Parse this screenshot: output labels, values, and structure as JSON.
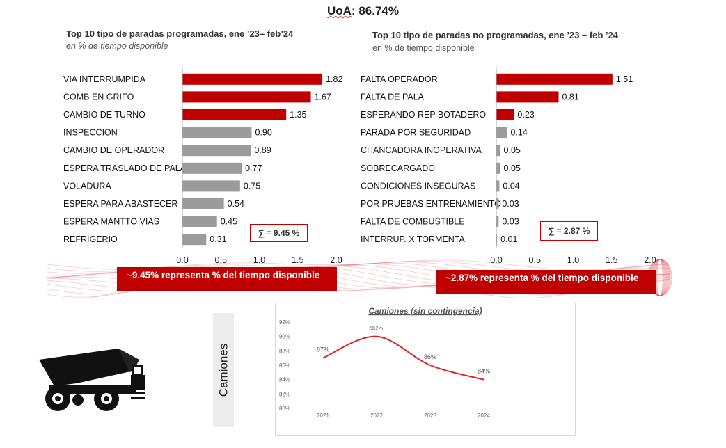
{
  "header": {
    "prefix": "UoA",
    "value": ": 86.74%"
  },
  "left_chart": {
    "title": "Top 10 tipo de paradas programadas, ene ’23– feb’24",
    "subtitle": "en % de tiempo disponible",
    "sum_label": "∑ = 9.45 %",
    "banner": "~9.45%  representa % del tiempo disponible"
  },
  "right_chart": {
    "title": "Top 10 tipo de paradas no programadas, ene ’23 – feb ’24",
    "subtitle": "en % de tiempo disponible",
    "sum_label": "∑ = 2.87 %",
    "banner": "~2.87%  representa % del tiempo disponible"
  },
  "line_panel": {
    "side_label": "Camiones"
  },
  "colors": {
    "accent": "#c00000",
    "gray_bar": "#9b9b9b",
    "line": "#e02020"
  },
  "icons": {
    "truck": "dump-truck-icon"
  },
  "chart_data": [
    {
      "type": "bar",
      "orientation": "horizontal",
      "categories": [
        "VIA INTERRUMPIDA",
        "COMB EN GRIFO",
        "CAMBIO DE TURNO",
        "INSPECCION",
        "CAMBIO DE OPERADOR",
        "ESPERA TRASLADO DE PALA",
        "VOLADURA",
        "ESPERA PARA ABASTECER",
        "ESPERA MANTTO VIAS",
        "REFRIGERIO"
      ],
      "values": [
        1.82,
        1.67,
        1.35,
        0.9,
        0.89,
        0.77,
        0.75,
        0.54,
        0.45,
        0.31
      ],
      "value_labels": [
        "1.82",
        "1.67",
        "1.35",
        "0.90",
        "0.89",
        "0.77",
        "0.75",
        "0.54",
        "0.45",
        "0.31"
      ],
      "highlight_count": 3,
      "xlim": [
        0,
        2.0
      ],
      "xticks": [
        "0.0",
        "0.5",
        "1.0",
        "1.5",
        "2.0"
      ],
      "grid": false
    },
    {
      "type": "bar",
      "orientation": "horizontal",
      "categories": [
        "FALTA OPERADOR",
        "FALTA DE PALA",
        "ESPERANDO REP BOTADERO",
        "PARADA POR SEGURIDAD",
        "CHANCADORA INOPERATIVA",
        "SOBRECARGADO",
        "CONDICIONES INSEGURAS",
        "POR PRUEBAS ENTRENAMIENTO",
        "FALTA DE COMBUSTIBLE",
        "INTERRUP. X TORMENTA"
      ],
      "values": [
        1.51,
        0.81,
        0.23,
        0.14,
        0.05,
        0.05,
        0.04,
        0.03,
        0.03,
        0.01
      ],
      "value_labels": [
        "1.51",
        "0.81",
        "0.23",
        "0.14",
        "0.05",
        "0.05",
        "0.04",
        "0.03",
        "0.03",
        "0.01"
      ],
      "highlight_count": 3,
      "xlim": [
        0,
        2.0
      ],
      "xticks": [
        "0.0",
        "0.5",
        "1.0",
        "1.5",
        "2.0"
      ],
      "grid": false
    },
    {
      "type": "line",
      "title": "Camiones (sin contingencia)",
      "x": [
        "2021",
        "2022",
        "2023",
        "2024"
      ],
      "values": [
        87,
        90,
        86,
        84
      ],
      "value_labels": [
        "87%",
        "90%",
        "86%",
        "84%"
      ],
      "ylim": [
        80,
        92
      ],
      "yticks": [
        "80%",
        "82%",
        "84%",
        "86%",
        "88%",
        "90%",
        "92%"
      ],
      "ytick_values": [
        80,
        82,
        84,
        86,
        88,
        90,
        92
      ],
      "smooth": true,
      "grid": false
    }
  ]
}
